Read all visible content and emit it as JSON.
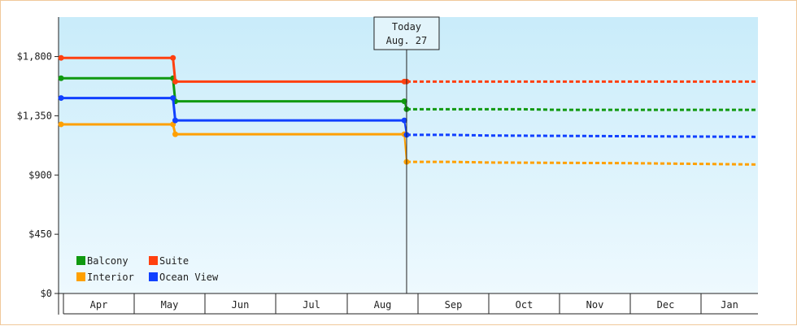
{
  "chart_data": {
    "type": "line",
    "step": true,
    "title": "",
    "xlabel": "",
    "ylabel": "",
    "ylim": [
      0,
      2100
    ],
    "y_ticks": [
      {
        "value": 0,
        "label": "$0"
      },
      {
        "value": 450,
        "label": "$450"
      },
      {
        "value": 900,
        "label": "$900"
      },
      {
        "value": 1350,
        "label": "$1,350"
      },
      {
        "value": 1800,
        "label": "$1,800"
      }
    ],
    "months": [
      "Apr",
      "May",
      "Jun",
      "Jul",
      "Aug",
      "Sep",
      "Oct",
      "Nov",
      "Dec",
      "Jan"
    ],
    "x_range": [
      "2025-04-01",
      "2026-01-31"
    ],
    "today": {
      "date": "2025-08-27",
      "label_line1": "Today",
      "label_line2": "Aug. 27"
    },
    "legend_position": "bottom-left",
    "series": [
      {
        "name": "Balcony",
        "color": "#109910",
        "history": [
          [
            "2025-03-31",
            1635
          ],
          [
            "2025-05-18",
            1635
          ],
          [
            "2025-05-19",
            1460
          ],
          [
            "2025-08-26",
            1460
          ]
        ],
        "forecast": [
          [
            "2025-08-27",
            1400
          ],
          [
            "2025-10-15",
            1400
          ],
          [
            "2025-11-01",
            1395
          ],
          [
            "2026-01-31",
            1395
          ]
        ]
      },
      {
        "name": "Suite",
        "color": "#ff4010",
        "history": [
          [
            "2025-03-31",
            1790
          ],
          [
            "2025-05-18",
            1790
          ],
          [
            "2025-05-19",
            1610
          ],
          [
            "2025-08-26",
            1610
          ]
        ],
        "forecast": [
          [
            "2025-08-27",
            1610
          ],
          [
            "2026-01-31",
            1610
          ]
        ]
      },
      {
        "name": "Interior",
        "color": "#ffa000",
        "history": [
          [
            "2025-03-31",
            1285
          ],
          [
            "2025-05-18",
            1285
          ],
          [
            "2025-05-19",
            1210
          ],
          [
            "2025-08-26",
            1210
          ]
        ],
        "forecast": [
          [
            "2025-08-27",
            1000
          ],
          [
            "2025-09-15",
            1000
          ],
          [
            "2025-10-01",
            995
          ],
          [
            "2025-12-01",
            990
          ],
          [
            "2026-01-31",
            980
          ]
        ]
      },
      {
        "name": "Ocean View",
        "color": "#1040ff",
        "history": [
          [
            "2025-03-31",
            1485
          ],
          [
            "2025-05-18",
            1485
          ],
          [
            "2025-05-19",
            1315
          ],
          [
            "2025-08-26",
            1315
          ]
        ],
        "forecast": [
          [
            "2025-08-27",
            1205
          ],
          [
            "2025-09-15",
            1205
          ],
          [
            "2025-10-01",
            1200
          ],
          [
            "2026-01-31",
            1190
          ]
        ]
      }
    ]
  }
}
